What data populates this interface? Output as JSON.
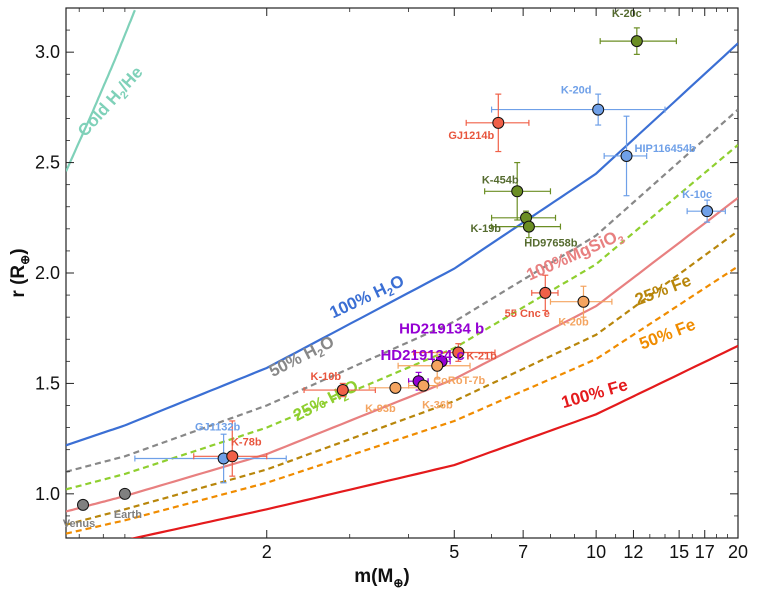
{
  "chart_data": {
    "type": "scatter",
    "xlabel": "m(M",
    "xlabel_sub": "⊕",
    "xlabel_close": ")",
    "ylabel": "r (R",
    "ylabel_sub": "⊕",
    "ylabel_close": ")",
    "x_scale": "log",
    "xlim": [
      0.75,
      20
    ],
    "ylim": [
      0.8,
      3.2
    ],
    "x_ticks": [
      {
        "value": 2,
        "label": "2"
      },
      {
        "value": 5,
        "label": "5"
      },
      {
        "value": 7,
        "label": "7"
      },
      {
        "value": 10,
        "label": "10"
      },
      {
        "value": 12,
        "label": "12"
      },
      {
        "value": 15,
        "label": "15"
      },
      {
        "value": 17,
        "label": "17"
      },
      {
        "value": 20,
        "label": "20"
      }
    ],
    "x_minor_ticks": [
      0.8,
      0.9,
      1,
      3,
      4,
      6,
      8,
      9,
      11,
      13,
      14,
      16,
      18,
      19
    ],
    "y_ticks": [
      {
        "value": 1.0,
        "label": "1.0"
      },
      {
        "value": 1.5,
        "label": "1.5"
      },
      {
        "value": 2.0,
        "label": "2.0"
      },
      {
        "value": 2.5,
        "label": "2.5"
      },
      {
        "value": 3.0,
        "label": "3.0"
      }
    ],
    "curves": [
      {
        "label": "Cold H₂/He",
        "color": "#7fd1b9",
        "dash": false,
        "points": [
          [
            0.75,
            2.46
          ],
          [
            0.85,
            2.72
          ],
          [
            0.95,
            2.96
          ],
          [
            1.05,
            3.19
          ]
        ]
      },
      {
        "label": "100% H₂O",
        "color": "#3b6fd4",
        "dash": false,
        "points": [
          [
            0.75,
            1.22
          ],
          [
            1,
            1.31
          ],
          [
            2,
            1.57
          ],
          [
            5,
            2.02
          ],
          [
            10,
            2.45
          ],
          [
            20,
            3.04
          ]
        ]
      },
      {
        "label": "50% H₂O",
        "color": "#888888",
        "dash": true,
        "points": [
          [
            0.75,
            1.1
          ],
          [
            1,
            1.17
          ],
          [
            2,
            1.4
          ],
          [
            5,
            1.78
          ],
          [
            10,
            2.17
          ],
          [
            20,
            2.74
          ]
        ]
      },
      {
        "label": "25% H₂O",
        "color": "#8fcf2f",
        "dash": true,
        "points": [
          [
            0.75,
            1.02
          ],
          [
            1,
            1.09
          ],
          [
            2,
            1.3
          ],
          [
            5,
            1.66
          ],
          [
            10,
            2.04
          ],
          [
            20,
            2.58
          ]
        ]
      },
      {
        "label": "100%MgSiO₃",
        "color": "#e88080",
        "dash": false,
        "points": [
          [
            0.75,
            0.92
          ],
          [
            1,
            0.99
          ],
          [
            2,
            1.18
          ],
          [
            5,
            1.52
          ],
          [
            10,
            1.85
          ],
          [
            20,
            2.34
          ]
        ]
      },
      {
        "label": "25% Fe",
        "color": "#b8860b",
        "dash": true,
        "points": [
          [
            0.75,
            0.86
          ],
          [
            1,
            0.93
          ],
          [
            2,
            1.11
          ],
          [
            5,
            1.42
          ],
          [
            10,
            1.72
          ],
          [
            20,
            2.19
          ]
        ]
      },
      {
        "label": "50% Fe",
        "color": "#f08c00",
        "dash": true,
        "points": [
          [
            0.75,
            0.82
          ],
          [
            1,
            0.88
          ],
          [
            2,
            1.05
          ],
          [
            5,
            1.33
          ],
          [
            10,
            1.61
          ],
          [
            20,
            2.03
          ]
        ]
      },
      {
        "label": "100% Fe",
        "color": "#e41a1c",
        "dash": false,
        "points": [
          [
            0.9,
            0.78
          ],
          [
            1,
            0.79
          ],
          [
            2,
            0.93
          ],
          [
            5,
            1.13
          ],
          [
            10,
            1.36
          ],
          [
            20,
            1.67
          ]
        ]
      }
    ],
    "series": [
      {
        "name": "K-20c",
        "x": 12.2,
        "y": 3.05,
        "xerr": [
          10.2,
          14.8
        ],
        "yerr": [
          2.99,
          3.11
        ],
        "color": "#6b8e23",
        "label_color": "#556b2f",
        "label_dx": -10,
        "label_dy": -24,
        "label_anchor": "middle"
      },
      {
        "name": "K-20d",
        "x": 10.1,
        "y": 2.74,
        "xerr": [
          6.0,
          14.0
        ],
        "yerr": [
          2.67,
          2.81
        ],
        "color": "#6fa0e8",
        "label_color": "#6fa0e8",
        "label_dx": -22,
        "label_dy": -16,
        "label_anchor": "middle"
      },
      {
        "name": "GJ1214b",
        "x": 6.2,
        "y": 2.68,
        "xerr": [
          5.3,
          7.2
        ],
        "yerr": [
          2.55,
          2.81
        ],
        "color": "#f06048",
        "label_color": "#e8553d",
        "label_dx": -27,
        "label_dy": 16,
        "label_anchor": "middle"
      },
      {
        "name": "HIP116454b",
        "x": 11.6,
        "y": 2.53,
        "xerr": [
          10.4,
          12.8
        ],
        "yerr": [
          2.35,
          2.71
        ],
        "color": "#6fa0e8",
        "label_color": "#6fa0e8",
        "label_dx": 8,
        "label_dy": -4,
        "label_anchor": "start"
      },
      {
        "name": "K-454b",
        "x": 6.8,
        "y": 2.37,
        "xerr": [
          5.8,
          8.0
        ],
        "yerr": [
          2.24,
          2.5
        ],
        "color": "#6b8e23",
        "label_color": "#556b2f",
        "label_dx": -17,
        "label_dy": -8,
        "label_anchor": "middle"
      },
      {
        "name": "K-10c",
        "x": 17.2,
        "y": 2.28,
        "xerr": [
          15.6,
          18.8
        ],
        "yerr": [
          2.23,
          2.33
        ],
        "color": "#6fa0e8",
        "label_color": "#6fa0e8",
        "label_dx": -10,
        "label_dy": -13,
        "label_anchor": "middle"
      },
      {
        "name": "K-19b",
        "x": 7.1,
        "y": 2.25,
        "xerr": [
          6.0,
          8.2
        ],
        "yerr": [
          2.22,
          2.28
        ],
        "color": "#6b8e23",
        "label_color": "#556b2f",
        "label_dx": -25,
        "label_dy": 14,
        "label_anchor": "end"
      },
      {
        "name": "HD97658b",
        "x": 7.2,
        "y": 2.21,
        "xerr": [
          6.0,
          8.4
        ],
        "yerr": [
          2.16,
          2.26
        ],
        "color": "#6b8e23",
        "label_color": "#556b2f",
        "label_dx": 22,
        "label_dy": 20,
        "label_anchor": "middle"
      },
      {
        "name": "55 Cnc e",
        "x": 7.8,
        "y": 1.91,
        "xerr": [
          7.3,
          8.3
        ],
        "yerr": [
          1.83,
          1.99
        ],
        "color": "#f06048",
        "label_color": "#e8553d",
        "label_dx": -18,
        "label_dy": 24,
        "label_anchor": "middle"
      },
      {
        "name": "K-20b",
        "x": 9.4,
        "y": 1.87,
        "xerr": [
          8.0,
          10.8
        ],
        "yerr": [
          1.8,
          1.94
        ],
        "color": "#f4a460",
        "label_color": "#f4a460",
        "label_dx": -10,
        "label_dy": 24,
        "label_anchor": "middle"
      },
      {
        "name": "HD219134 b",
        "x": 4.7,
        "y": 1.6,
        "xerr": [
          4.5,
          4.9
        ],
        "yerr": [
          1.58,
          1.62
        ],
        "color": "#9400d3",
        "label_color": "#9400d3",
        "label_dx": 0,
        "label_dy": -28,
        "label_anchor": "middle",
        "big": true
      },
      {
        "name": "K-21b",
        "x": 5.1,
        "y": 1.64,
        "xerr": [
          4.1,
          6.1
        ],
        "yerr": [
          1.6,
          1.68
        ],
        "color": "#f06048",
        "label_color": "#e8553d",
        "label_dx": 8,
        "label_dy": 7,
        "label_anchor": "start"
      },
      {
        "name": "HD219134 c",
        "x": 4.2,
        "y": 1.51,
        "xerr": [
          4.0,
          4.4
        ],
        "yerr": [
          1.47,
          1.55
        ],
        "color": "#9400d3",
        "label_color": "#9400d3",
        "label_dx": 4,
        "label_dy": -21,
        "label_anchor": "middle",
        "big": true
      },
      {
        "name": "CoRoT-7b",
        "x": 4.6,
        "y": 1.58,
        "xerr": [
          3.8,
          5.4
        ],
        "yerr": [
          1.52,
          1.64
        ],
        "color": "#f4a460",
        "label_color": "#f4a460",
        "label_dx": 22,
        "label_dy": 18,
        "label_anchor": "middle"
      },
      {
        "name": "K-10b",
        "x": 2.9,
        "y": 1.47,
        "xerr": [
          2.4,
          3.4
        ],
        "yerr": [
          1.44,
          1.5
        ],
        "color": "#f06048",
        "label_color": "#e8553d",
        "label_dx": -17,
        "label_dy": -10,
        "label_anchor": "middle"
      },
      {
        "name": "K-93b",
        "x": 3.75,
        "y": 1.48,
        "xerr": [
          3.3,
          4.2
        ],
        "yerr": [
          1.46,
          1.5
        ],
        "color": "#f4a460",
        "label_color": "#f4a460",
        "label_dx": -15,
        "label_dy": 24,
        "label_anchor": "middle"
      },
      {
        "name": "K-36b",
        "x": 4.3,
        "y": 1.49,
        "xerr": [
          4.0,
          4.6
        ],
        "yerr": [
          1.47,
          1.51
        ],
        "color": "#f4a460",
        "label_color": "#f4a460",
        "label_dx": 14,
        "label_dy": 23,
        "label_anchor": "middle"
      },
      {
        "name": "GJ1132b",
        "x": 1.62,
        "y": 1.16,
        "xerr": [
          1.05,
          2.2
        ],
        "yerr": [
          1.05,
          1.27
        ],
        "color": "#6fa0e8",
        "label_color": "#6fa0e8",
        "label_dx": -6,
        "label_dy": -28,
        "label_anchor": "middle"
      },
      {
        "name": "K-78b",
        "x": 1.69,
        "y": 1.17,
        "xerr": [
          1.4,
          2.0
        ],
        "yerr": [
          1.08,
          1.33
        ],
        "color": "#f06048",
        "label_color": "#e8553d",
        "label_dx": 14,
        "label_dy": -11,
        "label_anchor": "middle"
      },
      {
        "name": "Venus",
        "x": 0.815,
        "y": 0.95,
        "xerr": null,
        "yerr": null,
        "color": "#808080",
        "label_color": "#808080",
        "label_dx": -4,
        "label_dy": 22,
        "label_anchor": "middle"
      },
      {
        "name": "Earth",
        "x": 1.0,
        "y": 1.0,
        "xerr": null,
        "yerr": null,
        "color": "#808080",
        "label_color": "#808080",
        "label_dx": 3,
        "label_dy": 24,
        "label_anchor": "middle"
      }
    ],
    "curve_labels": [
      {
        "text": "Cold H",
        "sub": "2",
        "tail": "/He",
        "color": "#7fd1b9",
        "x": 0.95,
        "y": 2.76,
        "angle": -48
      },
      {
        "text": "100% H",
        "sub": "2",
        "tail": "O",
        "color": "#3b6fd4",
        "x": 3.3,
        "y": 1.87,
        "angle": -25
      },
      {
        "text": "50% H",
        "sub": "2",
        "tail": "O",
        "color": "#888888",
        "x": 2.4,
        "y": 1.6,
        "angle": -27
      },
      {
        "text": "25% H",
        "sub": "2",
        "tail": "O",
        "color": "#8fcf2f",
        "x": 2.7,
        "y": 1.4,
        "angle": -27
      },
      {
        "text": "100%MgSiO",
        "sub": "3",
        "tail": "",
        "color": "#e88080",
        "x": 9.1,
        "y": 2.06,
        "angle": -24
      },
      {
        "text": "25% Fe",
        "sub": "",
        "tail": "",
        "color": "#b8860b",
        "x": 14.0,
        "y": 1.9,
        "angle": -21
      },
      {
        "text": "50% Fe",
        "sub": "",
        "tail": "",
        "color": "#f08c00",
        "x": 14.3,
        "y": 1.7,
        "angle": -21
      },
      {
        "text": "100% Fe",
        "sub": "",
        "tail": "",
        "color": "#e41a1c",
        "x": 10.0,
        "y": 1.43,
        "angle": -16
      }
    ]
  }
}
